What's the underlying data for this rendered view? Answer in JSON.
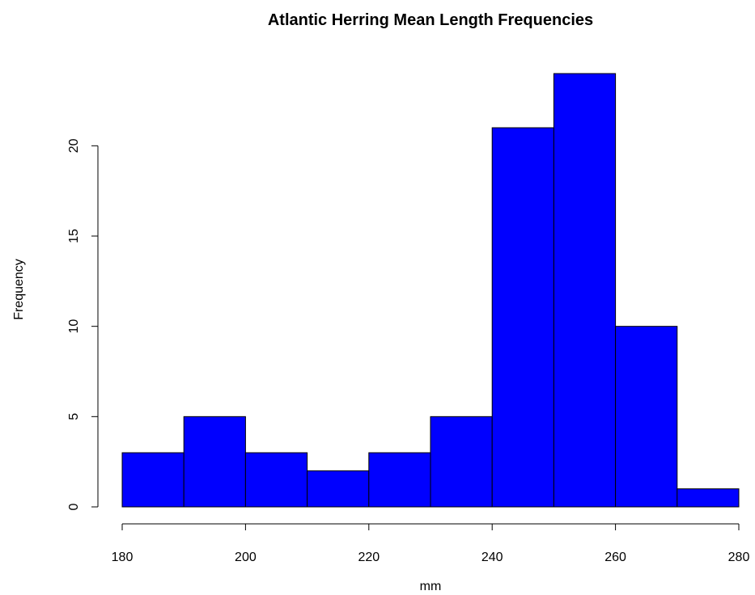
{
  "chart_data": {
    "type": "bar",
    "subtype": "histogram",
    "title": "Atlantic Herring Mean Length Frequencies",
    "xlabel": "mm",
    "ylabel": "Frequency",
    "bin_edges": [
      180,
      190,
      200,
      210,
      220,
      230,
      240,
      250,
      260,
      270,
      280
    ],
    "values": [
      3,
      5,
      3,
      2,
      3,
      5,
      21,
      24,
      10,
      1
    ],
    "xlim": [
      180,
      280
    ],
    "ylim": [
      0,
      24
    ],
    "x_ticks": [
      180,
      200,
      220,
      240,
      260,
      280
    ],
    "y_ticks": [
      0,
      5,
      10,
      15,
      20
    ],
    "bar_color": "#0000ff",
    "edge_color": "#000000",
    "grid": false,
    "legend": "none"
  }
}
